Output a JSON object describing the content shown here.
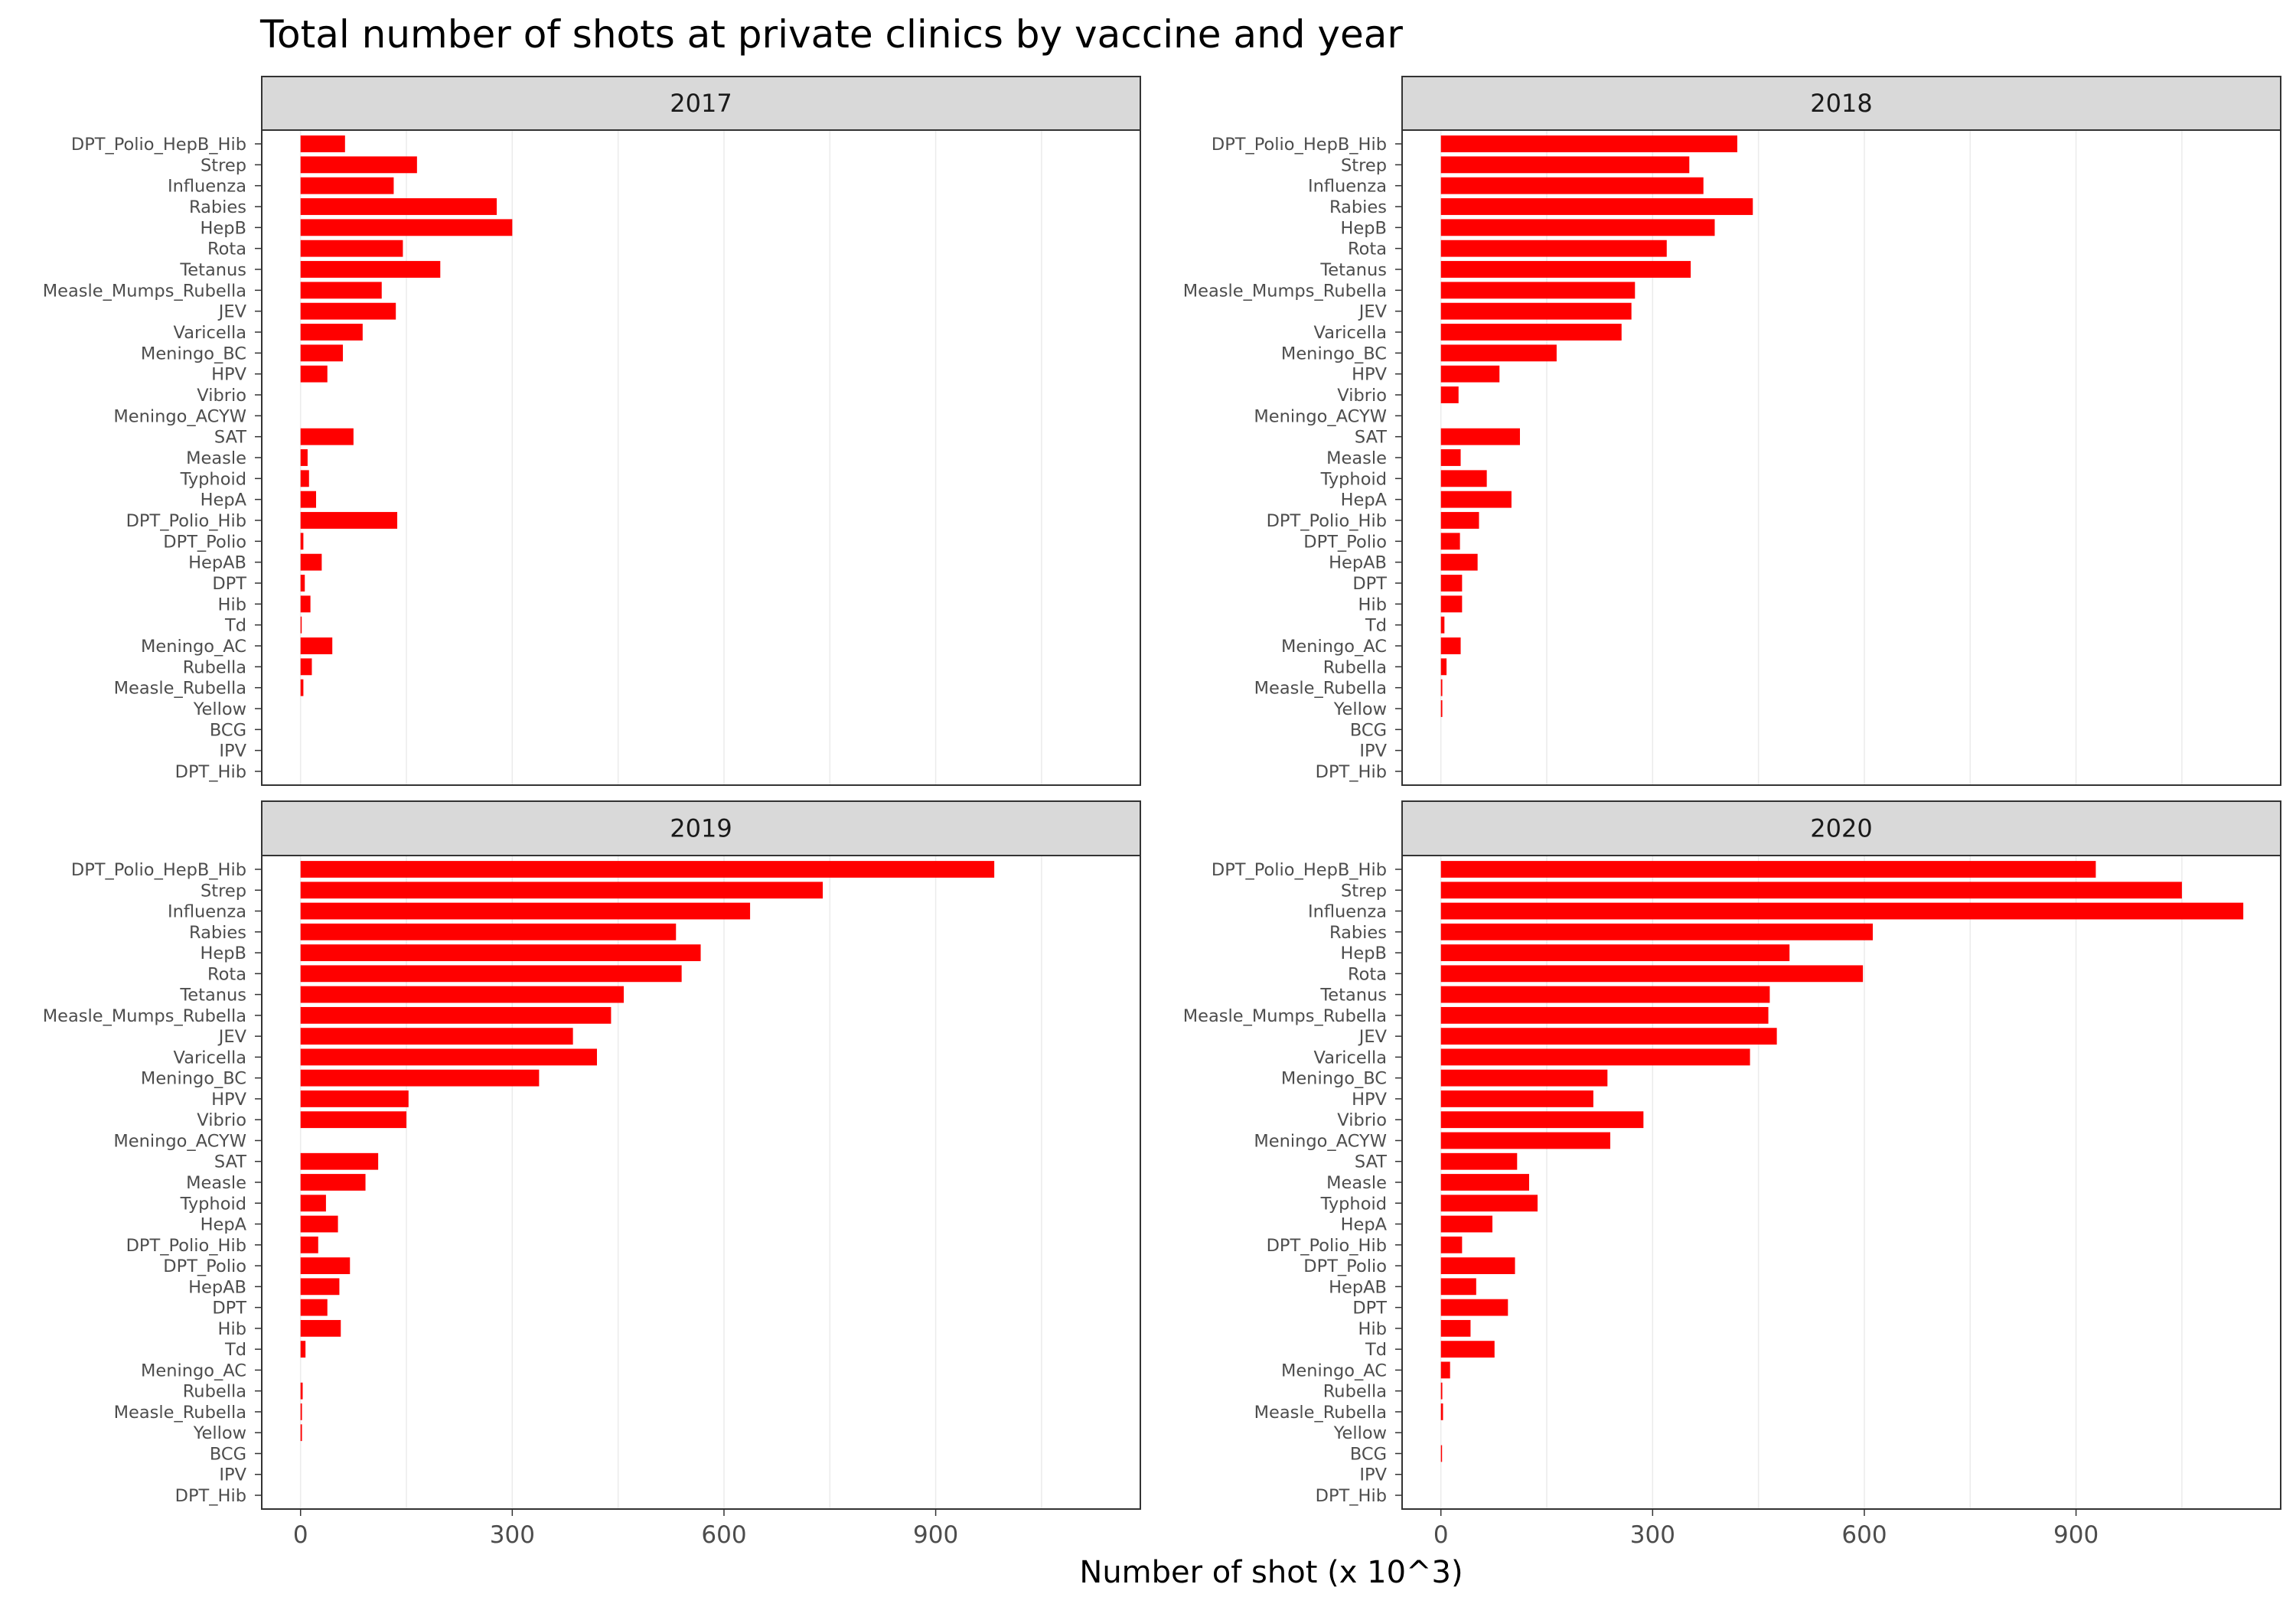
{
  "chart_data": {
    "type": "bar",
    "orientation": "horizontal",
    "title": "Total number of shots at private clinics by vaccine and year",
    "xlabel": "Number of shot (x 10^3)",
    "ylabel": "",
    "xlim": [
      -55,
      1190
    ],
    "xticks": [
      0,
      300,
      600,
      900
    ],
    "grid": true,
    "bar_color": "#ff0000",
    "categories": [
      "DPT_Polio_HepB_Hib",
      "Strep",
      "Influenza",
      "Rabies",
      "HepB",
      "Rota",
      "Tetanus",
      "Measle_Mumps_Rubella",
      "JEV",
      "Varicella",
      "Meningo_BC",
      "HPV",
      "Vibrio",
      "Meningo_ACYW",
      "SAT",
      "Measle",
      "Typhoid",
      "HepA",
      "DPT_Polio_Hib",
      "DPT_Polio",
      "HepAB",
      "DPT",
      "Hib",
      "Td",
      "Meningo_AC",
      "Rubella",
      "Measle_Rubella",
      "Yellow",
      "BCG",
      "IPV",
      "DPT_Hib"
    ],
    "facets": [
      {
        "name": "2017",
        "values": [
          63,
          165,
          132,
          278,
          300,
          145,
          198,
          115,
          135,
          88,
          60,
          38,
          0,
          0,
          75,
          10,
          12,
          22,
          137,
          4,
          30,
          6,
          14,
          1,
          45,
          16,
          4,
          0,
          0,
          0,
          0
        ]
      },
      {
        "name": "2018",
        "values": [
          420,
          352,
          372,
          442,
          388,
          320,
          354,
          275,
          270,
          256,
          164,
          83,
          25,
          0,
          112,
          28,
          65,
          100,
          54,
          27,
          52,
          30,
          30,
          5,
          28,
          8,
          2,
          2,
          0,
          0,
          0
        ]
      },
      {
        "name": "2019",
        "values": [
          983,
          740,
          637,
          532,
          567,
          540,
          458,
          440,
          386,
          420,
          338,
          153,
          150,
          0,
          110,
          92,
          36,
          53,
          25,
          70,
          55,
          38,
          57,
          7,
          0,
          3,
          2,
          2,
          0,
          0,
          0
        ]
      },
      {
        "name": "2020",
        "values": [
          928,
          1050,
          1137,
          612,
          494,
          598,
          466,
          464,
          476,
          438,
          236,
          216,
          287,
          240,
          108,
          125,
          137,
          73,
          30,
          105,
          50,
          95,
          42,
          76,
          13,
          2,
          3,
          0,
          1,
          0,
          0
        ]
      }
    ]
  }
}
